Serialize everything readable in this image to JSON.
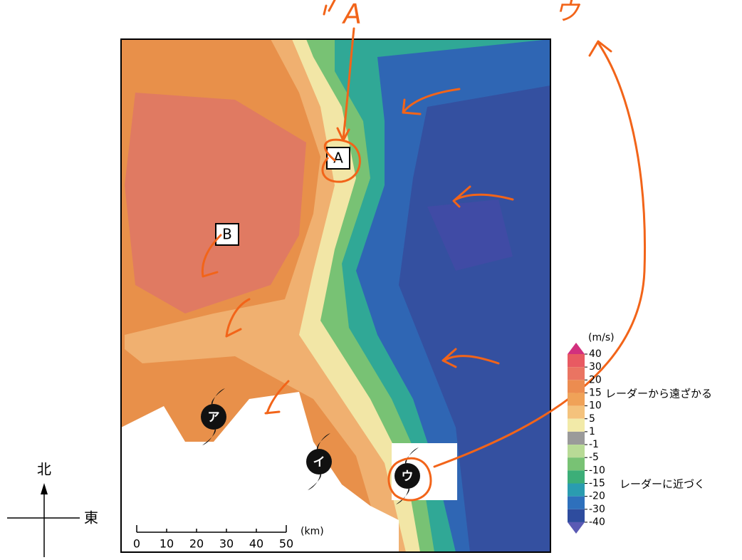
{
  "points": [
    {
      "label": "A"
    },
    {
      "label": "B"
    }
  ],
  "typhoons": [
    {
      "label": "ア"
    },
    {
      "label": "イ"
    },
    {
      "label": "ウ"
    }
  ],
  "handwritten": [
    "A",
    "ウ"
  ],
  "colorbar": {
    "unit": "(m/s)",
    "ticks": [
      40,
      30,
      20,
      15,
      10,
      5,
      1,
      -1,
      -5,
      -10,
      -15,
      -20,
      -30,
      -40
    ],
    "colors": [
      "#e85a62",
      "#ea7462",
      "#ec8c50",
      "#f0a258",
      "#f4c27c",
      "#f2eaa8",
      "#9a9a9a",
      "#b8da96",
      "#78c274",
      "#3cae78",
      "#2a9cb0",
      "#2e70bc",
      "#2e4c9e"
    ],
    "top_color": "#d2307e",
    "bottom_color": "#5a5ab4",
    "annotations": [
      "レーダーから遠ざかる",
      "レーダーに近づく"
    ]
  },
  "scale": {
    "ticks": [
      0,
      10,
      20,
      30,
      40,
      50
    ],
    "unit": "(km)"
  },
  "compass": {
    "north": "北",
    "east": "東"
  }
}
